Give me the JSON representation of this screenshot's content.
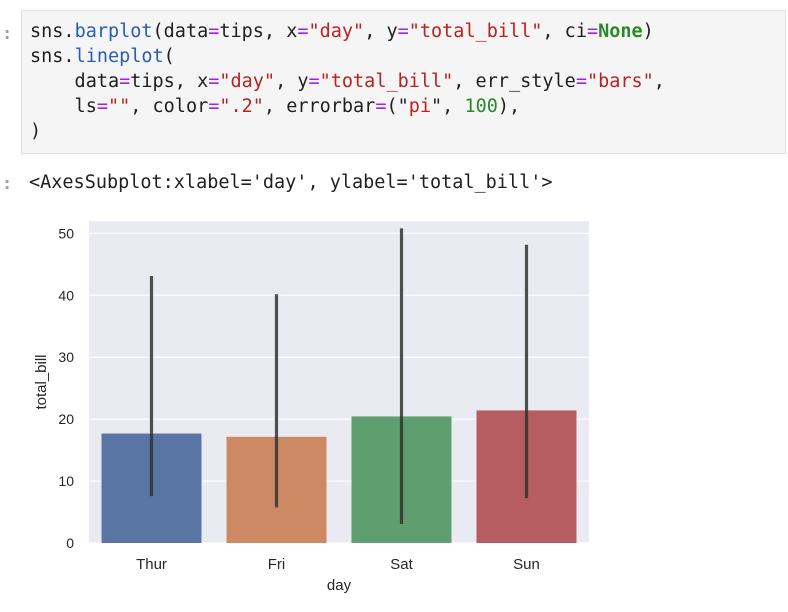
{
  "code_cell": {
    "prompt": ":",
    "lines": [
      [
        {
          "t": "sns."
        },
        {
          "t": "barplot",
          "c": "kw-fn"
        },
        {
          "t": "(data"
        },
        {
          "t": "=",
          "c": "kw-op"
        },
        {
          "t": "tips, x"
        },
        {
          "t": "=",
          "c": "kw-op"
        },
        {
          "t": "\"day\"",
          "c": "kw-str"
        },
        {
          "t": ", y"
        },
        {
          "t": "=",
          "c": "kw-op"
        },
        {
          "t": "\"total_bill\"",
          "c": "kw-str"
        },
        {
          "t": ", ci"
        },
        {
          "t": "=",
          "c": "kw-op"
        },
        {
          "t": "None",
          "c": "kw-bold"
        },
        {
          "t": ")"
        }
      ],
      [
        {
          "t": "sns."
        },
        {
          "t": "lineplot",
          "c": "kw-fn"
        },
        {
          "t": "("
        }
      ],
      [
        {
          "t": "    data"
        },
        {
          "t": "=",
          "c": "kw-op"
        },
        {
          "t": "tips, x"
        },
        {
          "t": "=",
          "c": "kw-op"
        },
        {
          "t": "\"day\"",
          "c": "kw-str"
        },
        {
          "t": ", y"
        },
        {
          "t": "=",
          "c": "kw-op"
        },
        {
          "t": "\"total_bill\"",
          "c": "kw-str"
        },
        {
          "t": ", err_style"
        },
        {
          "t": "=",
          "c": "kw-op"
        },
        {
          "t": "\"bars\"",
          "c": "kw-str"
        },
        {
          "t": ","
        }
      ],
      [
        {
          "t": "    ls"
        },
        {
          "t": "=",
          "c": "kw-op"
        },
        {
          "t": "\"\"",
          "c": "kw-str"
        },
        {
          "t": ", color"
        },
        {
          "t": "=",
          "c": "kw-op"
        },
        {
          "t": "\".2\"",
          "c": "kw-str"
        },
        {
          "t": ", errorbar"
        },
        {
          "t": "=",
          "c": "kw-op"
        },
        {
          "t": "(\""
        },
        {
          "t": "pi",
          "c": "kw-str"
        },
        {
          "t": "\", "
        },
        {
          "t": "100",
          "c": "kw-num"
        },
        {
          "t": "),"
        }
      ],
      [
        {
          "t": ")"
        }
      ]
    ]
  },
  "output": {
    "prompt": ":",
    "text": "<AxesSubplot:xlabel='day', ylabel='total_bill'>"
  },
  "chart_data": {
    "type": "bar",
    "categories": [
      "Thur",
      "Fri",
      "Sat",
      "Sun"
    ],
    "values": [
      17.68,
      17.15,
      20.44,
      21.41
    ],
    "error_bars": [
      [
        7.56,
        43.11
      ],
      [
        5.75,
        40.17
      ],
      [
        3.07,
        50.81
      ],
      [
        7.25,
        48.17
      ]
    ],
    "bar_colors": [
      "#5975a4",
      "#cc8963",
      "#5f9e6e",
      "#b55d60"
    ],
    "errorbar_color": "#333333",
    "background_color": "#eaeaf2",
    "xlabel": "day",
    "ylabel": "total_bill",
    "yticks": [
      0,
      10,
      20,
      30,
      40,
      50
    ],
    "ylim": [
      0,
      52
    ],
    "grid": true
  }
}
